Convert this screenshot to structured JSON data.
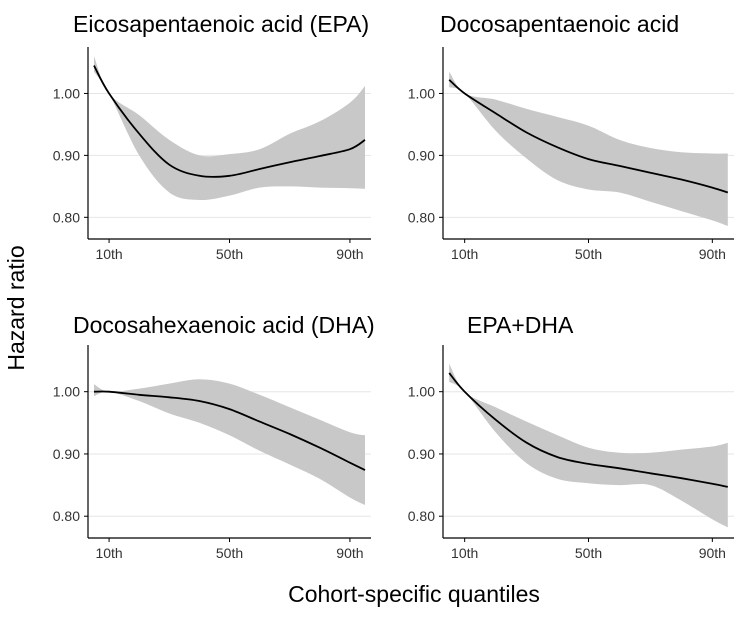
{
  "figure": {
    "ylabel": "Hazard ratio",
    "xlabel": "Cohort-specific quantiles"
  },
  "colors": {
    "band": "#c8c8c8",
    "line": "#000000",
    "grid": "#e6e6e6"
  },
  "chart_data": [
    {
      "type": "line",
      "title": "Eicosapentaenoic acid (EPA)",
      "x_ticks": [
        10,
        50,
        90
      ],
      "x_tick_labels": [
        "10th",
        "50th",
        "90th"
      ],
      "xlim": [
        3,
        97
      ],
      "y_ticks": [
        0.8,
        0.9,
        1.0
      ],
      "y_tick_labels": [
        "0.80",
        "0.90",
        "1.00"
      ],
      "ylim": [
        0.765,
        1.075
      ],
      "grid": true,
      "series": [
        {
          "x": [
            5,
            10,
            20,
            30,
            40,
            50,
            60,
            70,
            80,
            90,
            95
          ],
          "estimate": [
            1.045,
            1.0,
            0.935,
            0.885,
            0.867,
            0.867,
            0.878,
            0.889,
            0.899,
            0.91,
            0.925
          ],
          "lower": [
            1.035,
            1.0,
            0.9,
            0.84,
            0.828,
            0.835,
            0.848,
            0.85,
            0.848,
            0.847,
            0.846
          ],
          "upper": [
            1.06,
            1.0,
            0.965,
            0.925,
            0.9,
            0.902,
            0.91,
            0.935,
            0.955,
            0.985,
            1.012
          ]
        }
      ]
    },
    {
      "type": "line",
      "title": "Docosapentaenoic acid",
      "x_ticks": [
        10,
        50,
        90
      ],
      "x_tick_labels": [
        "10th",
        "50th",
        "90th"
      ],
      "xlim": [
        3,
        97
      ],
      "y_ticks": [
        0.8,
        0.9,
        1.0
      ],
      "y_tick_labels": [
        "0.80",
        "0.90",
        "1.00"
      ],
      "ylim": [
        0.765,
        1.075
      ],
      "grid": true,
      "series": [
        {
          "x": [
            5,
            10,
            20,
            30,
            40,
            50,
            60,
            70,
            80,
            90,
            95
          ],
          "estimate": [
            1.022,
            1.0,
            0.968,
            0.937,
            0.913,
            0.894,
            0.883,
            0.872,
            0.861,
            0.848,
            0.84
          ],
          "lower": [
            1.01,
            1.0,
            0.94,
            0.895,
            0.86,
            0.845,
            0.84,
            0.825,
            0.81,
            0.795,
            0.786
          ],
          "upper": [
            1.035,
            1.0,
            0.99,
            0.975,
            0.962,
            0.948,
            0.925,
            0.912,
            0.905,
            0.903,
            0.903
          ]
        }
      ]
    },
    {
      "type": "line",
      "title": "Docosahexaenoic acid (DHA)",
      "x_ticks": [
        10,
        50,
        90
      ],
      "x_tick_labels": [
        "10th",
        "50th",
        "90th"
      ],
      "xlim": [
        3,
        97
      ],
      "y_ticks": [
        0.8,
        0.9,
        1.0
      ],
      "y_tick_labels": [
        "0.80",
        "0.90",
        "1.00"
      ],
      "ylim": [
        0.765,
        1.075
      ],
      "grid": true,
      "series": [
        {
          "x": [
            5,
            10,
            20,
            30,
            40,
            50,
            60,
            70,
            80,
            90,
            95
          ],
          "estimate": [
            1.0,
            1.0,
            0.995,
            0.991,
            0.985,
            0.972,
            0.952,
            0.932,
            0.91,
            0.886,
            0.874
          ],
          "lower": [
            0.993,
            1.0,
            0.985,
            0.965,
            0.95,
            0.93,
            0.905,
            0.883,
            0.86,
            0.83,
            0.818
          ],
          "upper": [
            1.012,
            1.0,
            1.005,
            1.013,
            1.02,
            1.013,
            0.995,
            0.975,
            0.955,
            0.935,
            0.93
          ]
        }
      ]
    },
    {
      "type": "line",
      "title": "EPA+DHA",
      "x_ticks": [
        10,
        50,
        90
      ],
      "x_tick_labels": [
        "10th",
        "50th",
        "90th"
      ],
      "xlim": [
        3,
        97
      ],
      "y_ticks": [
        0.8,
        0.9,
        1.0
      ],
      "y_tick_labels": [
        "0.80",
        "0.90",
        "1.00"
      ],
      "ylim": [
        0.765,
        1.075
      ],
      "grid": true,
      "series": [
        {
          "x": [
            5,
            10,
            20,
            30,
            40,
            50,
            60,
            70,
            80,
            90,
            95
          ],
          "estimate": [
            1.03,
            1.0,
            0.955,
            0.918,
            0.895,
            0.884,
            0.877,
            0.869,
            0.861,
            0.852,
            0.847
          ],
          "lower": [
            1.016,
            1.0,
            0.935,
            0.885,
            0.86,
            0.853,
            0.85,
            0.85,
            0.825,
            0.795,
            0.782
          ],
          "upper": [
            1.045,
            1.0,
            0.975,
            0.952,
            0.93,
            0.91,
            0.902,
            0.902,
            0.907,
            0.912,
            0.918
          ]
        }
      ]
    }
  ]
}
